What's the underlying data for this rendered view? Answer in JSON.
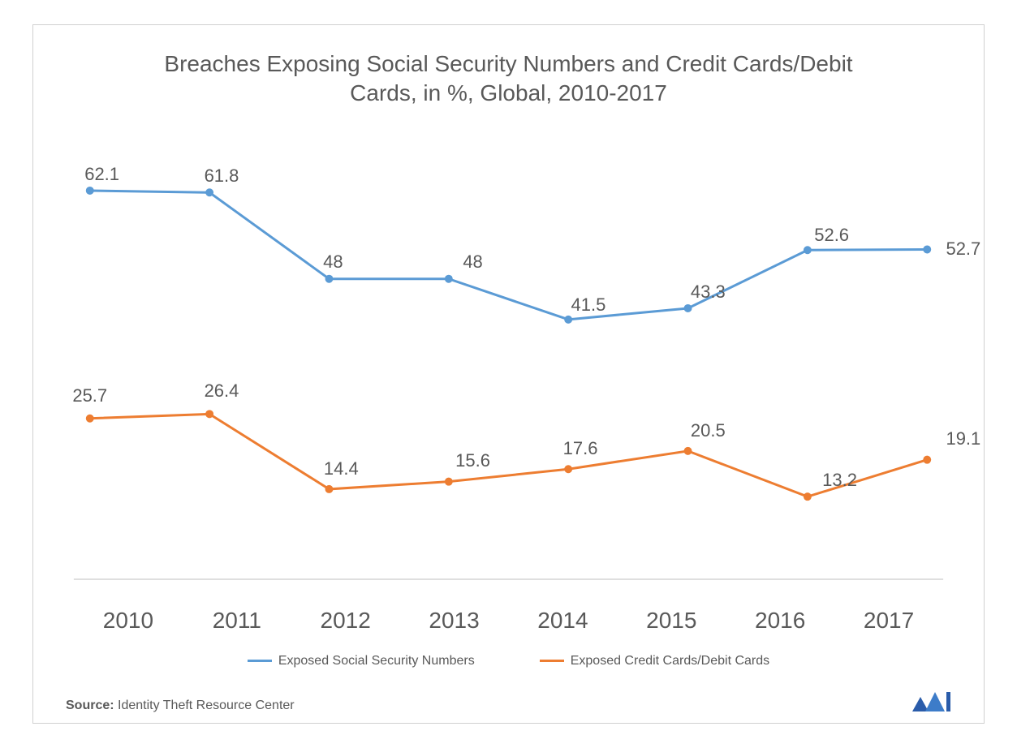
{
  "chart": {
    "type": "line",
    "title": "Breaches Exposing Social Security Numbers and Credit Cards/Debit Cards, in %, Global, 2010-2017",
    "title_fontsize": 28,
    "title_color": "#595959",
    "background_color": "#ffffff",
    "border_color": "#d0d0d0",
    "categories": [
      "2010",
      "2011",
      "2012",
      "2013",
      "2014",
      "2015",
      "2016",
      "2017"
    ],
    "x_label_fontsize": 28,
    "x_label_color": "#595959",
    "ylim": [
      0,
      70
    ],
    "series": [
      {
        "name": "Exposed Social Security Numbers",
        "color": "#5b9bd5",
        "line_width": 3,
        "marker": "circle",
        "marker_size": 5,
        "values": [
          62.1,
          61.8,
          48,
          48,
          41.5,
          43.3,
          52.6,
          52.7
        ],
        "label_offsets": [
          {
            "dx": 15,
            "dy": -20
          },
          {
            "dx": 15,
            "dy": -20
          },
          {
            "dx": 5,
            "dy": -20
          },
          {
            "dx": 30,
            "dy": -20
          },
          {
            "dx": 25,
            "dy": -18
          },
          {
            "dx": 25,
            "dy": -20
          },
          {
            "dx": 30,
            "dy": -18
          },
          {
            "dx": 45,
            "dy": 0
          }
        ]
      },
      {
        "name": "Exposed Credit Cards/Debit Cards",
        "color": "#ed7d31",
        "line_width": 3,
        "marker": "circle",
        "marker_size": 5,
        "values": [
          25.7,
          26.4,
          14.4,
          15.6,
          17.6,
          20.5,
          13.2,
          19.1
        ],
        "label_offsets": [
          {
            "dx": 0,
            "dy": -28
          },
          {
            "dx": 15,
            "dy": -28
          },
          {
            "dx": 15,
            "dy": -25
          },
          {
            "dx": 30,
            "dy": -25
          },
          {
            "dx": 15,
            "dy": -25
          },
          {
            "dx": 25,
            "dy": -25
          },
          {
            "dx": 40,
            "dy": -20
          },
          {
            "dx": 45,
            "dy": -25
          }
        ]
      }
    ],
    "data_label_fontsize": 22,
    "data_label_color": "#595959",
    "legend": {
      "position": "bottom",
      "fontsize": 16,
      "color": "#595959"
    },
    "axis_color": "#bfbfbf",
    "source_label": "Source:",
    "source_text": "Identity Theft Resource Center",
    "source_fontsize": 16,
    "logo_colors": [
      "#2a5caa",
      "#3d7cc9"
    ]
  }
}
